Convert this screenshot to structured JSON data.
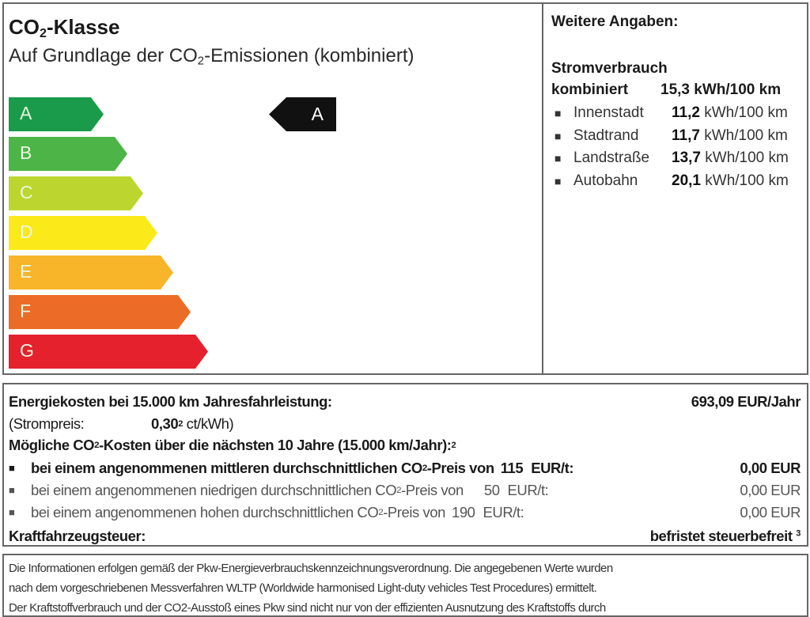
{
  "header": {
    "title": {
      "a": "CO",
      "sub": "2",
      "b": "-Klasse"
    },
    "subtitle": {
      "a": "Auf Grundlage der CO",
      "sub": "2",
      "b": "-Emissionen (kombiniert)"
    }
  },
  "scale": {
    "classes": [
      {
        "label": "A",
        "color": "#1a9b4b"
      },
      {
        "label": "B",
        "color": "#4db447"
      },
      {
        "label": "C",
        "color": "#bdd62f"
      },
      {
        "label": "D",
        "color": "#fbe91a"
      },
      {
        "label": "E",
        "color": "#f8b52a"
      },
      {
        "label": "F",
        "color": "#ec6b26"
      },
      {
        "label": "G",
        "color": "#e5212d"
      }
    ],
    "current_class": "A"
  },
  "weitere": {
    "heading": "Weitere Angaben:",
    "section": "Stromverbrauch",
    "combined_label": "kombiniert",
    "combined_value": "15,3 kWh/100 km",
    "rows": [
      {
        "label": "Innenstadt",
        "value": "11,2",
        "unit": "kWh/100 km"
      },
      {
        "label": "Stadtrand",
        "value": "11,7",
        "unit": "kWh/100 km"
      },
      {
        "label": "Landstraße",
        "value": "13,7",
        "unit": "kWh/100 km"
      },
      {
        "label": "Autobahn",
        "value": "20,1",
        "unit": "kWh/100 km"
      }
    ]
  },
  "costs": {
    "energy_label": "Energiekosten bei 15.000 km Jahresfahrleistung:",
    "energy_value": "693,09 EUR/Jahr",
    "price_label": "(Strompreis:",
    "price_value": "0,30",
    "price_sup": "2",
    "price_unit": "ct/kWh)",
    "co2_heading": {
      "a": "Mögliche CO",
      "sub": "2",
      "b": "-Kosten über die nächsten 10 Jahre (15.000 km/Jahr):",
      "sup": "2"
    },
    "co2_rows": [
      {
        "a": "bei einem angenommenen mittleren durchschnittlichen CO",
        "sub": "2",
        "b": "-Preis von",
        "price": "115",
        "unit": "EUR/t:",
        "value": "0,00 EUR"
      },
      {
        "a": "bei einem angenommenen niedrigen durchschnittlichen CO",
        "sub": "2",
        "b": "-Preis von",
        "price": "50",
        "unit": "EUR/t:",
        "value": "0,00 EUR"
      },
      {
        "a": "bei einem angenommenen hohen durchschnittlichen CO",
        "sub": "2",
        "b": "-Preis von",
        "price": "190",
        "unit": "EUR/t:",
        "value": "0,00 EUR"
      }
    ],
    "tax_label": "Kraftfahrzeugsteuer:",
    "tax_value": "befristet steuerbefreit",
    "tax_sup": "3"
  },
  "footer": {
    "lines": [
      "Die Informationen erfolgen gemäß der Pkw-Energieverbrauchskennzeichnungsverordnung. Die angegebenen Werte wurden",
      "nach dem vorgeschriebenen Messverfahren WLTP (Worldwide harmonised Light-duty vehicles Test Procedures) ermittelt.",
      "Der Kraftstoffverbrauch und der CO2-Ausstoß eines Pkw sind nicht nur von der effizienten Ausnutzung des Kraftstoffs durch"
    ]
  }
}
